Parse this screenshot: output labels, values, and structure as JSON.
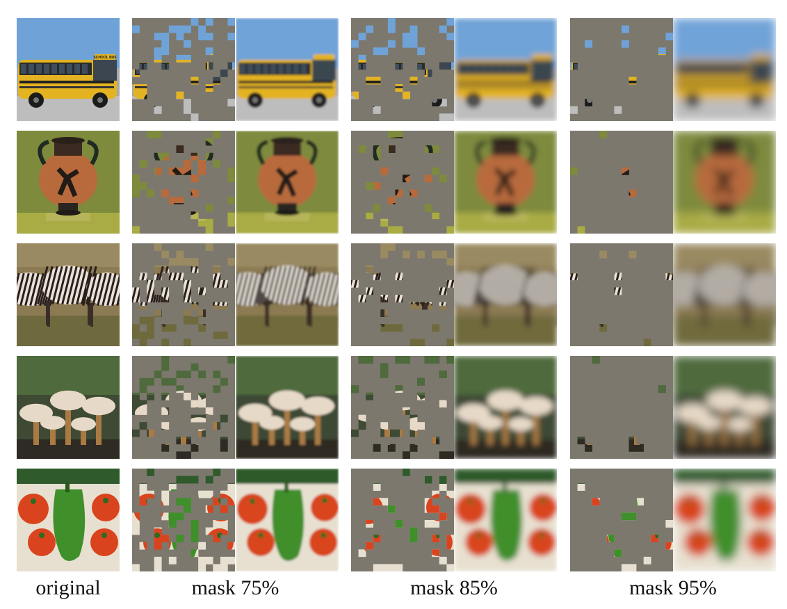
{
  "figure": {
    "columns": [
      {
        "label": "original"
      },
      {
        "label": "mask 75%",
        "mask_ratio": 0.75
      },
      {
        "label": "mask 85%",
        "mask_ratio": 0.85
      },
      {
        "label": "mask 95%",
        "mask_ratio": 0.95
      }
    ],
    "rows": [
      {
        "subject": "school-bus"
      },
      {
        "subject": "amphora-vase"
      },
      {
        "subject": "zebras"
      },
      {
        "subject": "mushrooms"
      },
      {
        "subject": "tomatoes-and-pepper"
      }
    ],
    "bus_sign_text": "SCHOOL BUS",
    "mask_color": "#7c786e"
  }
}
